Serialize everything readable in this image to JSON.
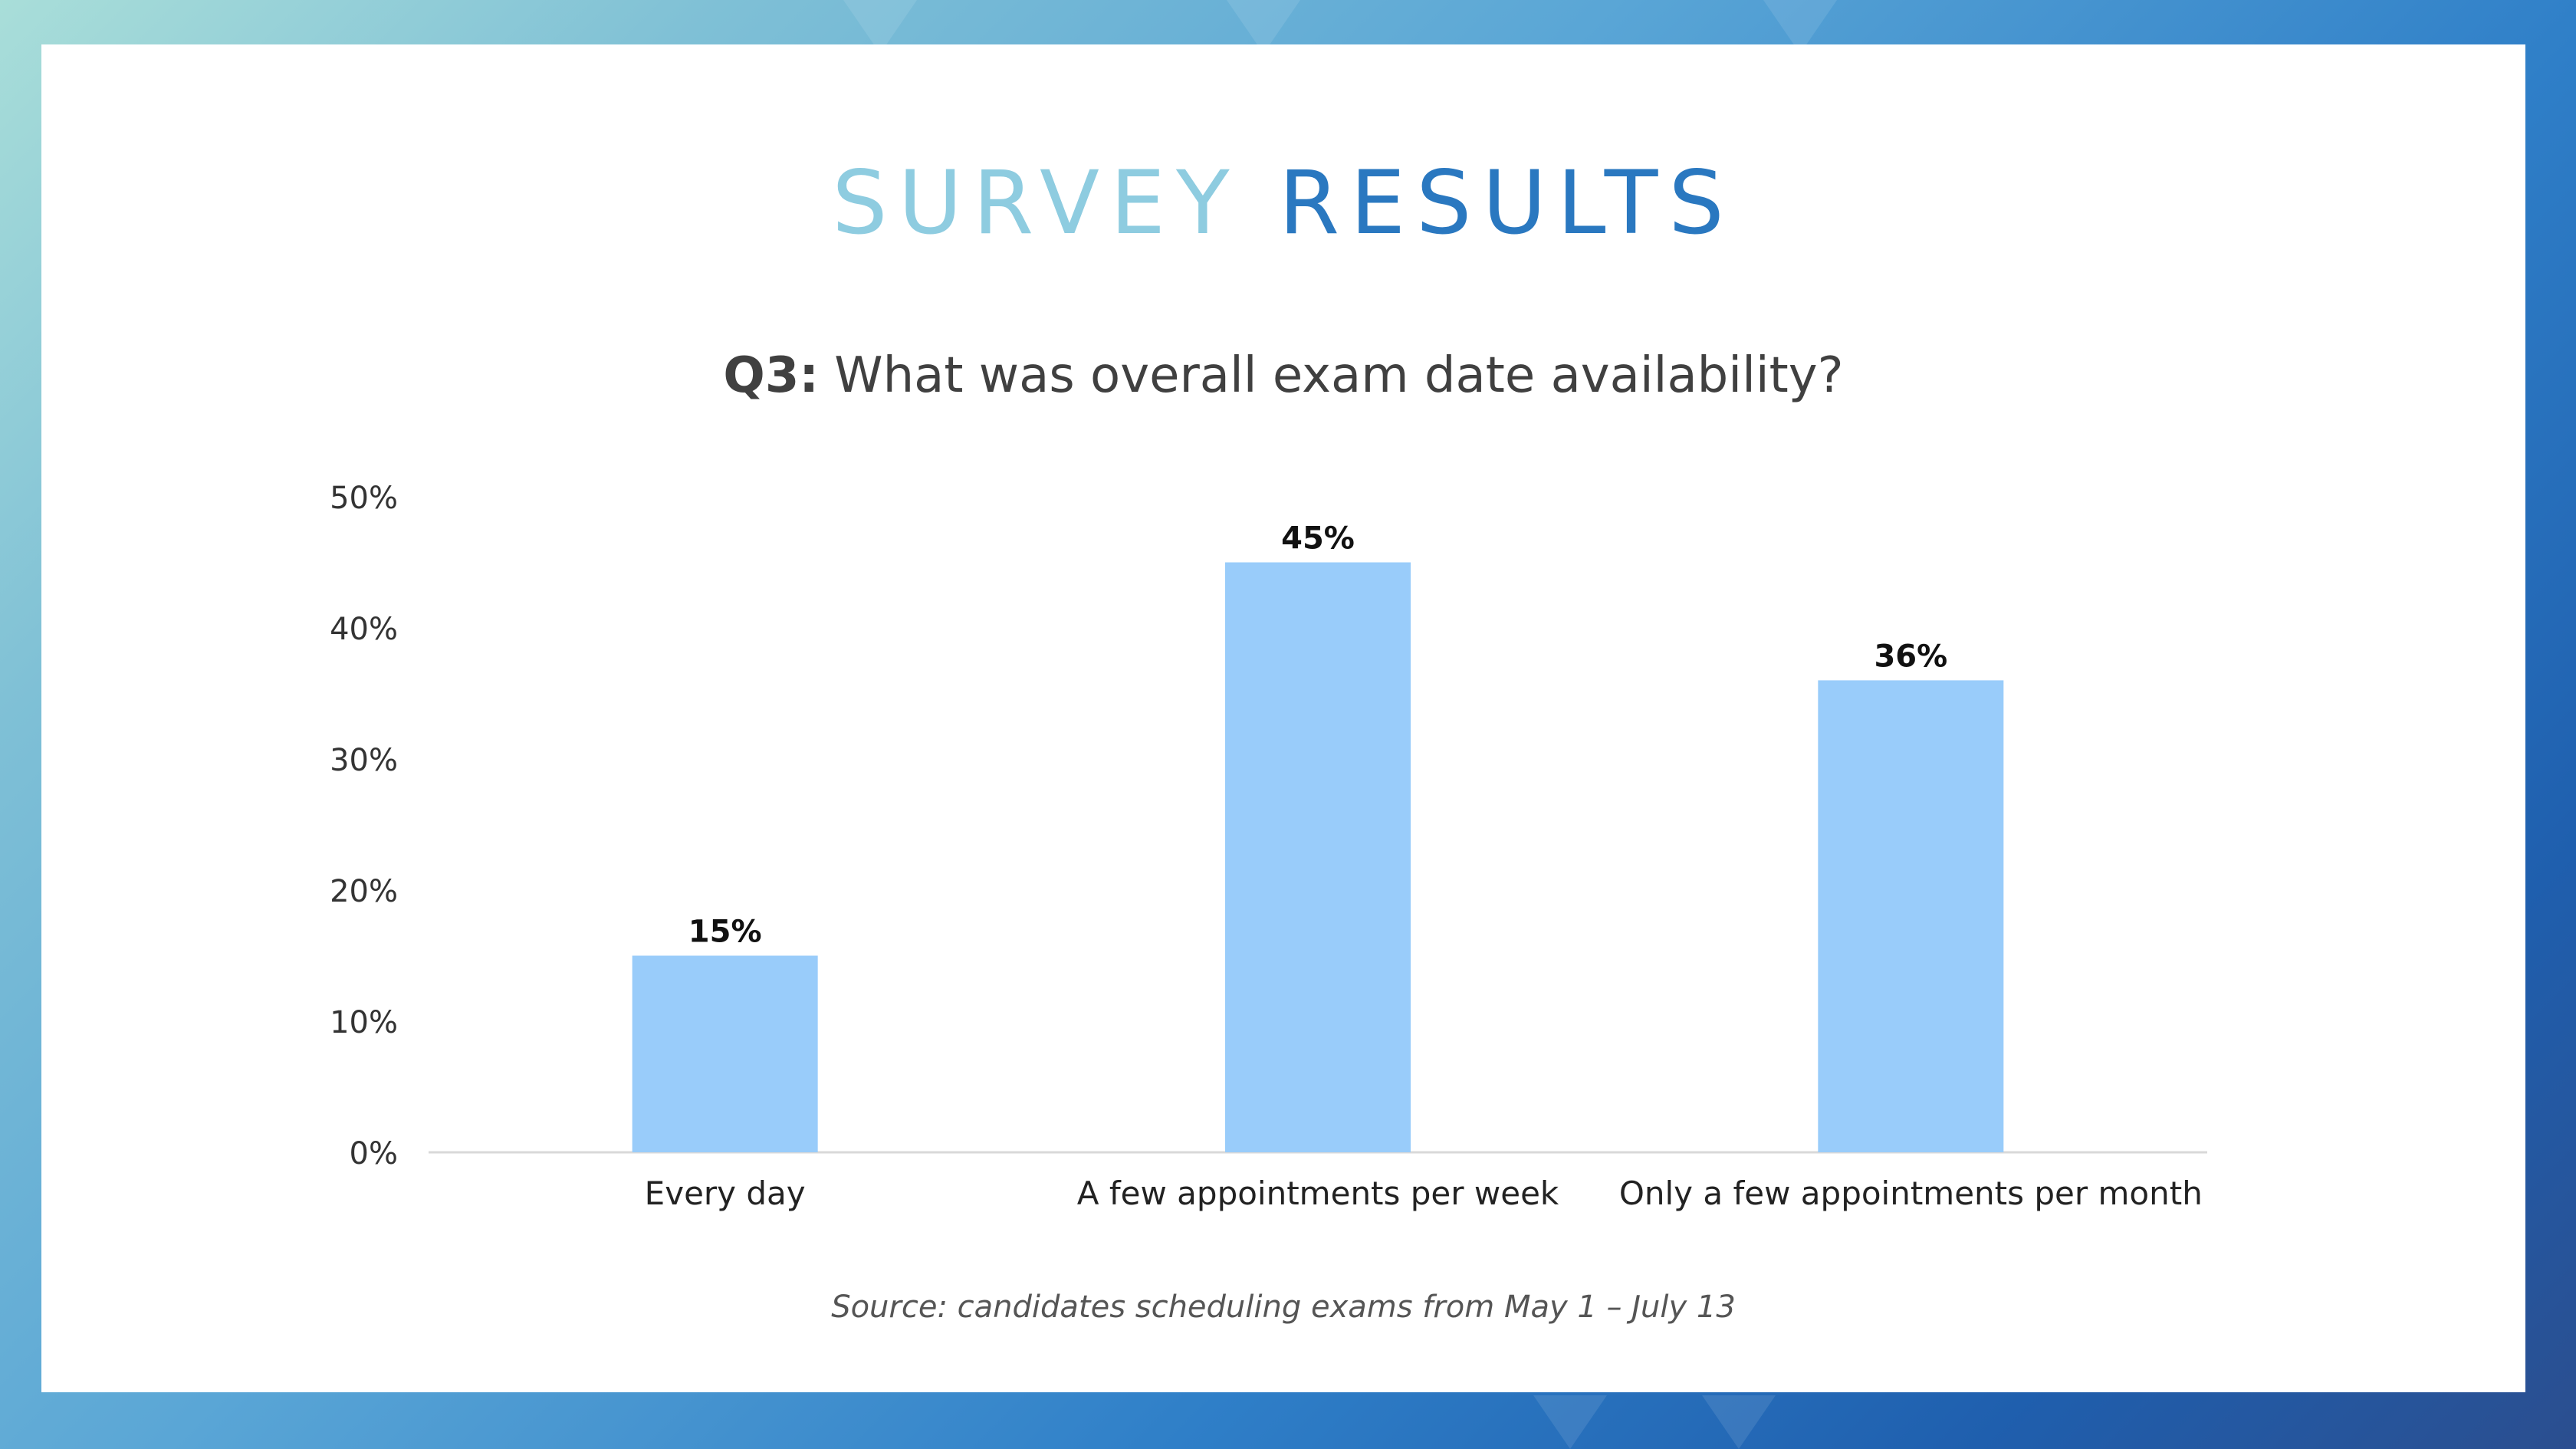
{
  "slide": {
    "title_part1": "SURVEY",
    "title_part2": "RESULTS",
    "question_number": "Q3:",
    "question_text": "What was overall exam date availability?",
    "source": "Source: candidates scheduling exams from May 1 – July 13"
  },
  "colors": {
    "title_light": "#8ecce0",
    "title_dark": "#2a78c0",
    "bar": "#99ccfa",
    "background_gradient_start": "#a9ded9",
    "background_gradient_end": "#2b4e8f"
  },
  "chart_data": {
    "type": "bar",
    "title": "Q3: What was overall exam date availability?",
    "categories": [
      "Every day",
      "A few appointments per week",
      "Only a few appointments per month"
    ],
    "values": [
      15,
      45,
      36
    ],
    "data_labels": [
      "15%",
      "45%",
      "36%"
    ],
    "xlabel": "",
    "ylabel": "",
    "ylim": [
      0,
      50
    ],
    "yticks": [
      0,
      10,
      20,
      30,
      40,
      50
    ],
    "ytick_labels": [
      "0%",
      "10%",
      "20%",
      "30%",
      "40%",
      "50%"
    ],
    "grid": false,
    "legend": "none"
  }
}
